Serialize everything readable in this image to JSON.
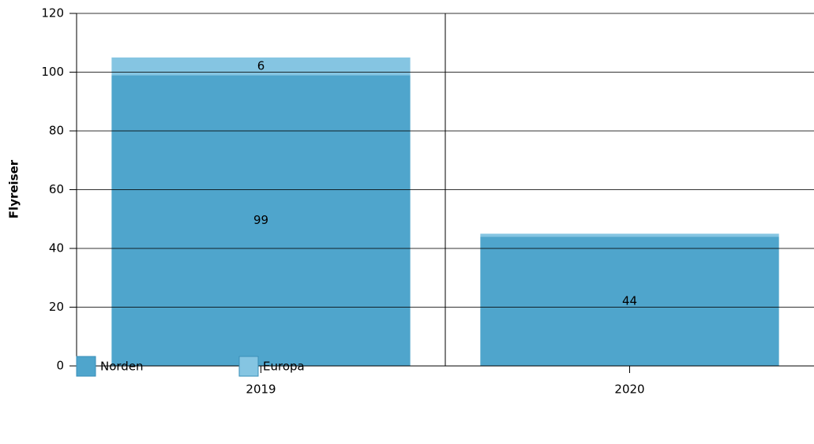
{
  "chart_data": {
    "type": "stacked_bar",
    "y_label": "Flyreiser",
    "categories": [
      "2019",
      "2020"
    ],
    "series": [
      {
        "name": "Norden",
        "color": "#4fa5cc",
        "values": [
          99,
          44
        ]
      },
      {
        "name": "Europa",
        "color": "#85c5e2",
        "values": [
          6,
          1
        ]
      }
    ],
    "ylim": [
      0,
      120
    ],
    "yticks": [
      0,
      20,
      40,
      60,
      80,
      100,
      120
    ],
    "grid": true,
    "legend": "bottom-left"
  }
}
